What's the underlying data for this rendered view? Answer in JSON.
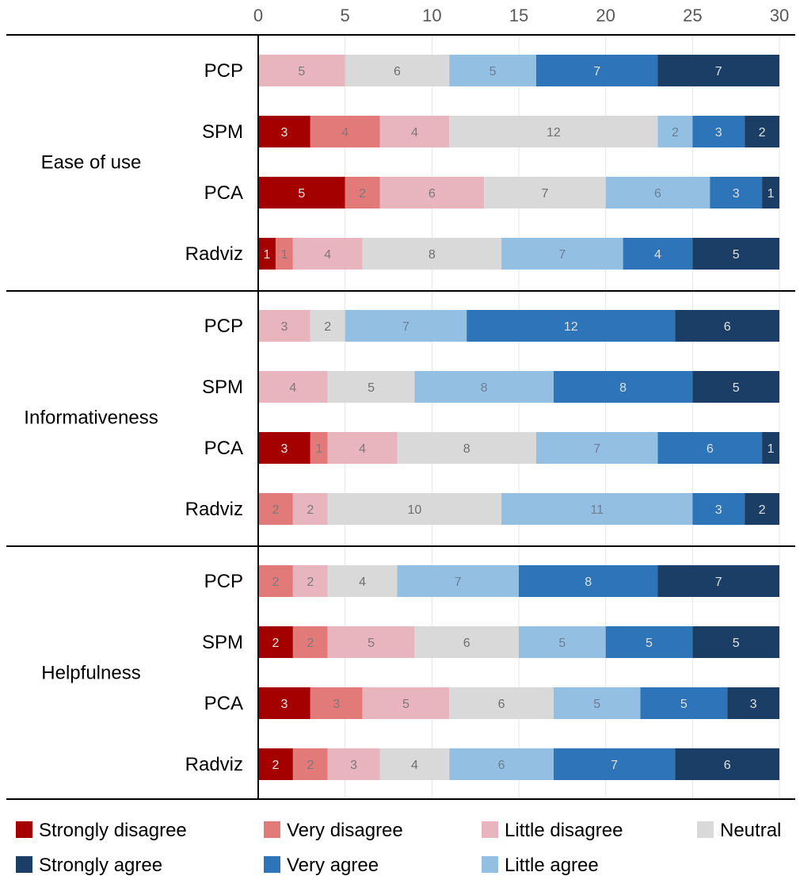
{
  "chart_data": {
    "type": "bar",
    "orientation": "horizontal",
    "stacked": true,
    "title": "",
    "xlabel": "",
    "ylabel": "",
    "xlim": [
      0,
      30
    ],
    "x_ticks": [
      0,
      5,
      10,
      15,
      20,
      25,
      30
    ],
    "x_axis_position": "top",
    "grid": true,
    "legend_position": "bottom",
    "groups": [
      {
        "name": "Ease of use",
        "rows": [
          {
            "label": "PCP",
            "values": [
              0,
              0,
              5,
              6,
              5,
              7,
              7
            ]
          },
          {
            "label": "SPM",
            "values": [
              3,
              4,
              4,
              12,
              2,
              3,
              2
            ]
          },
          {
            "label": "PCA",
            "values": [
              5,
              2,
              6,
              7,
              6,
              3,
              1
            ]
          },
          {
            "label": "Radviz",
            "values": [
              1,
              1,
              4,
              8,
              7,
              4,
              5
            ]
          }
        ]
      },
      {
        "name": "Informativeness",
        "rows": [
          {
            "label": "PCP",
            "values": [
              0,
              0,
              3,
              2,
              7,
              12,
              6
            ]
          },
          {
            "label": "SPM",
            "values": [
              0,
              0,
              4,
              5,
              8,
              8,
              5
            ]
          },
          {
            "label": "PCA",
            "values": [
              3,
              1,
              4,
              8,
              7,
              6,
              1
            ]
          },
          {
            "label": "Radviz",
            "values": [
              0,
              2,
              2,
              10,
              11,
              3,
              2
            ]
          }
        ]
      },
      {
        "name": "Helpfulness",
        "rows": [
          {
            "label": "PCP",
            "values": [
              0,
              2,
              2,
              4,
              7,
              8,
              7
            ]
          },
          {
            "label": "SPM",
            "values": [
              2,
              2,
              5,
              6,
              5,
              5,
              5
            ]
          },
          {
            "label": "PCA",
            "values": [
              3,
              3,
              5,
              6,
              5,
              5,
              3
            ]
          },
          {
            "label": "Radviz",
            "values": [
              2,
              2,
              3,
              4,
              6,
              7,
              6
            ]
          }
        ]
      }
    ],
    "series": [
      {
        "name": "Strongly disagree",
        "color": "#A50000",
        "label_color": "#E8E8E8"
      },
      {
        "name": "Very disagree",
        "color": "#E27A7A",
        "label_color": "#7A7A7A"
      },
      {
        "name": "Little disagree",
        "color": "#E8B4BE",
        "label_color": "#7A7A7A"
      },
      {
        "name": "Neutral",
        "color": "#D9D9D9",
        "label_color": "#6E6E6E"
      },
      {
        "name": "Little agree",
        "color": "#93BFE3",
        "label_color": "#6E7F90"
      },
      {
        "name": "Very agree",
        "color": "#2E74B8",
        "label_color": "#E0E0E0"
      },
      {
        "name": "Strongly agree",
        "color": "#1A3E66",
        "label_color": "#E0E0E0"
      }
    ],
    "legend_order": [
      "Strongly disagree",
      "Very disagree",
      "Little disagree",
      "Neutral",
      "Strongly agree",
      "Very agree",
      "Little agree"
    ]
  }
}
